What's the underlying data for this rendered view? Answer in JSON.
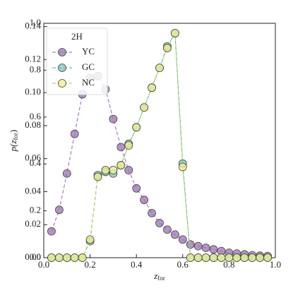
{
  "chart_data": {
    "type": "line",
    "xlabel": {
      "main": "z",
      "sub": "for"
    },
    "ylabel": {
      "main": "p(z",
      "sub": "for",
      "end": ")"
    },
    "legend_title": "2H",
    "legend": "upper left",
    "x": [
      0.0333,
      0.0667,
      0.1,
      0.1333,
      0.1667,
      0.2,
      0.2333,
      0.2667,
      0.3,
      0.3333,
      0.3667,
      0.4,
      0.4333,
      0.4667,
      0.5,
      0.5333,
      0.5667,
      0.6,
      0.6333,
      0.6667,
      0.7,
      0.7333,
      0.7667,
      0.8,
      0.8333,
      0.8667,
      0.9,
      0.9333,
      0.9667
    ],
    "series": [
      {
        "name": "YC",
        "color": "#9b72b0",
        "line_color": "#a57fb8",
        "values": [
          0.016,
          0.029,
          0.051,
          0.075,
          0.099,
          0.109,
          0.11,
          0.102,
          0.084,
          0.067,
          0.053,
          0.042,
          0.035,
          0.027,
          0.021,
          0.017,
          0.014,
          0.011,
          0.008,
          0.007,
          0.006,
          0.005,
          0.004,
          0.003,
          0.0025,
          0.002,
          0.0015,
          0.0012,
          0.001
        ]
      },
      {
        "name": "GC",
        "color": "#78c4c8",
        "line_color": "#6bbcb8",
        "values": [
          0,
          0,
          0,
          0,
          0,
          0.01,
          0.05,
          0.052,
          0.051,
          0.056,
          0.069,
          0.079,
          0.091,
          0.103,
          0.115,
          0.128,
          0.136,
          0.057,
          0,
          0,
          0,
          0,
          0,
          0,
          0,
          0,
          0,
          0,
          0
        ]
      },
      {
        "name": "NC",
        "color": "#f4ef8a",
        "line_color": "#b8d66a",
        "values": [
          0,
          0,
          0,
          0,
          0,
          0.011,
          0.049,
          0.053,
          0.053,
          0.056,
          0.068,
          0.079,
          0.091,
          0.103,
          0.115,
          0.127,
          0.136,
          0.055,
          0,
          0,
          0,
          0,
          0,
          0,
          0,
          0,
          0,
          0,
          0
        ]
      }
    ],
    "xlim": [
      0,
      1
    ],
    "xticks": [
      {
        "value": 0,
        "label": "0.0"
      },
      0.2,
      0.4,
      0.6,
      0.8,
      {
        "value": 1,
        "label": "1.0"
      }
    ],
    "ylim": [
      0,
      0.142
    ],
    "yticks": [
      {
        "value": 0,
        "label": "0.00"
      },
      0.02,
      0.04,
      0.06,
      0.08,
      {
        "value": 0.1,
        "label": "0.10"
      },
      0.12,
      0.14
    ],
    "y2lim": [
      0,
      1
    ],
    "y2ticks": [
      {
        "value": 0,
        "label": "0.0"
      },
      0.2,
      0.4,
      0.6,
      0.8,
      {
        "value": 1,
        "label": "1.0"
      }
    ]
  }
}
